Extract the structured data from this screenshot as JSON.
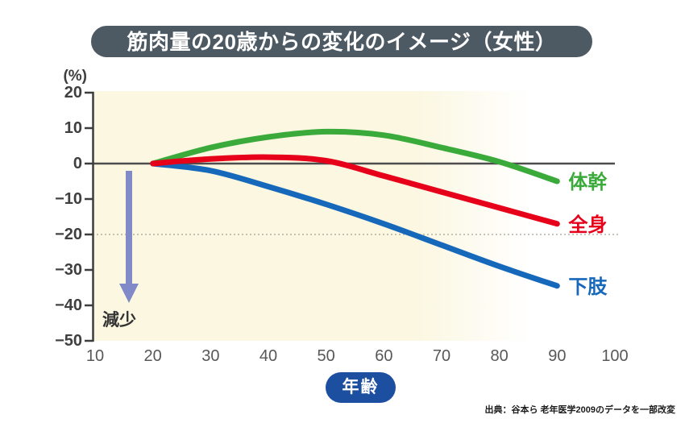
{
  "title": "筋肉量の20歳からの変化のイメージ（女性）",
  "source": "出典：谷本ら 老年医学2009のデータを一部改変",
  "y_axis": {
    "unit_label": "(%)",
    "ticks": [
      "20",
      "10",
      "0",
      "−10",
      "−20",
      "−30",
      "−40",
      "−50"
    ],
    "tick_values": [
      20,
      10,
      0,
      -10,
      -20,
      -30,
      -40,
      -50
    ]
  },
  "x_axis": {
    "label": "年齢",
    "ticks": [
      "10",
      "20",
      "30",
      "40",
      "50",
      "60",
      "70",
      "80",
      "90",
      "100"
    ],
    "tick_values": [
      10,
      20,
      30,
      40,
      50,
      60,
      70,
      80,
      90,
      100
    ]
  },
  "annotation": {
    "decrease_label": "減少",
    "arrow_color": "#8189c8"
  },
  "colors": {
    "title_bg": "#4d5a64",
    "age_pill_bg": "#1d4fa0",
    "plot_bg_cream": "#fbf7e1",
    "axis": "#3d3d3d",
    "zero_line": "#4d4d4d",
    "dotted_line": "#b3b1a6"
  },
  "chart_data": {
    "type": "line",
    "title": "筋肉量の20歳からの変化のイメージ（女性）",
    "xlabel": "年齢",
    "ylabel": "(%)",
    "xlim": [
      10,
      100
    ],
    "ylim": [
      -50,
      20
    ],
    "grid": false,
    "legend_position": "right-of-line-ends",
    "x": [
      20,
      30,
      40,
      50,
      60,
      70,
      80,
      90
    ],
    "series": [
      {
        "name": "体幹",
        "color": "#3aaa3a",
        "values": [
          0,
          4.5,
          7.5,
          9,
          8,
          4.5,
          0.5,
          -5
        ]
      },
      {
        "name": "全身",
        "color": "#e60019",
        "values": [
          0,
          1.3,
          1.8,
          0.8,
          -3.5,
          -8,
          -12.5,
          -17
        ]
      },
      {
        "name": "下肢",
        "color": "#1668bb",
        "values": [
          0,
          -2,
          -6.5,
          -11.5,
          -17,
          -23,
          -29,
          -34.5
        ]
      }
    ],
    "reference_lines": [
      {
        "y": 0,
        "style": "solid"
      },
      {
        "y": -20,
        "style": "dotted"
      }
    ]
  }
}
